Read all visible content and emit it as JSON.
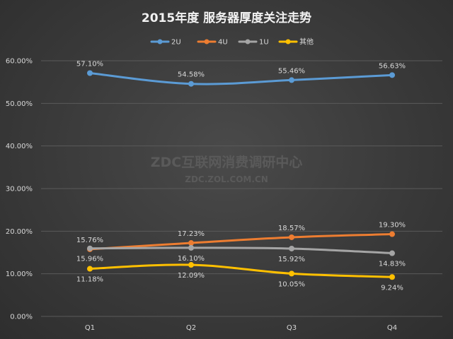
{
  "chart_data": {
    "type": "line",
    "title": "2015年度 服务器厚度关注走势",
    "categories": [
      "Q1",
      "Q2",
      "Q3",
      "Q4"
    ],
    "ylim": [
      0,
      60
    ],
    "ytick_step": 10,
    "ytick_labels": [
      "0.00%",
      "10.00%",
      "20.00%",
      "30.00%",
      "40.00%",
      "50.00%",
      "60.00%"
    ],
    "legend_position": "top-center",
    "grid": true,
    "series": [
      {
        "name": "2U",
        "color": "#5b9bd5",
        "values": [
          57.1,
          54.58,
          55.46,
          56.63
        ],
        "labels": [
          "57.10%",
          "54.58%",
          "55.46%",
          "56.63%"
        ],
        "label_pos": [
          "above",
          "above",
          "above",
          "above"
        ]
      },
      {
        "name": "4U",
        "color": "#ed7d31",
        "values": [
          15.76,
          17.23,
          18.57,
          19.3
        ],
        "labels": [
          "15.76%",
          "17.23%",
          "18.57%",
          "19.30%"
        ],
        "label_pos": [
          "above",
          "above",
          "above",
          "above"
        ]
      },
      {
        "name": "1U",
        "color": "#a5a5a5",
        "values": [
          15.96,
          16.1,
          15.92,
          14.83
        ],
        "labels": [
          "15.96%",
          "16.10%",
          "15.92%",
          "14.83%"
        ],
        "label_pos": [
          "below",
          "below",
          "below",
          "below"
        ]
      },
      {
        "name": "其他",
        "color": "#ffc000",
        "values": [
          11.18,
          12.09,
          10.05,
          9.24
        ],
        "labels": [
          "11.18%",
          "12.09%",
          "10.05%",
          "9.24%"
        ],
        "label_pos": [
          "below",
          "below",
          "below",
          "below"
        ]
      }
    ]
  },
  "watermark": {
    "line1": "ZDC互联网消费调研中心",
    "line2": "ZDC.ZOL.COM.CN"
  }
}
